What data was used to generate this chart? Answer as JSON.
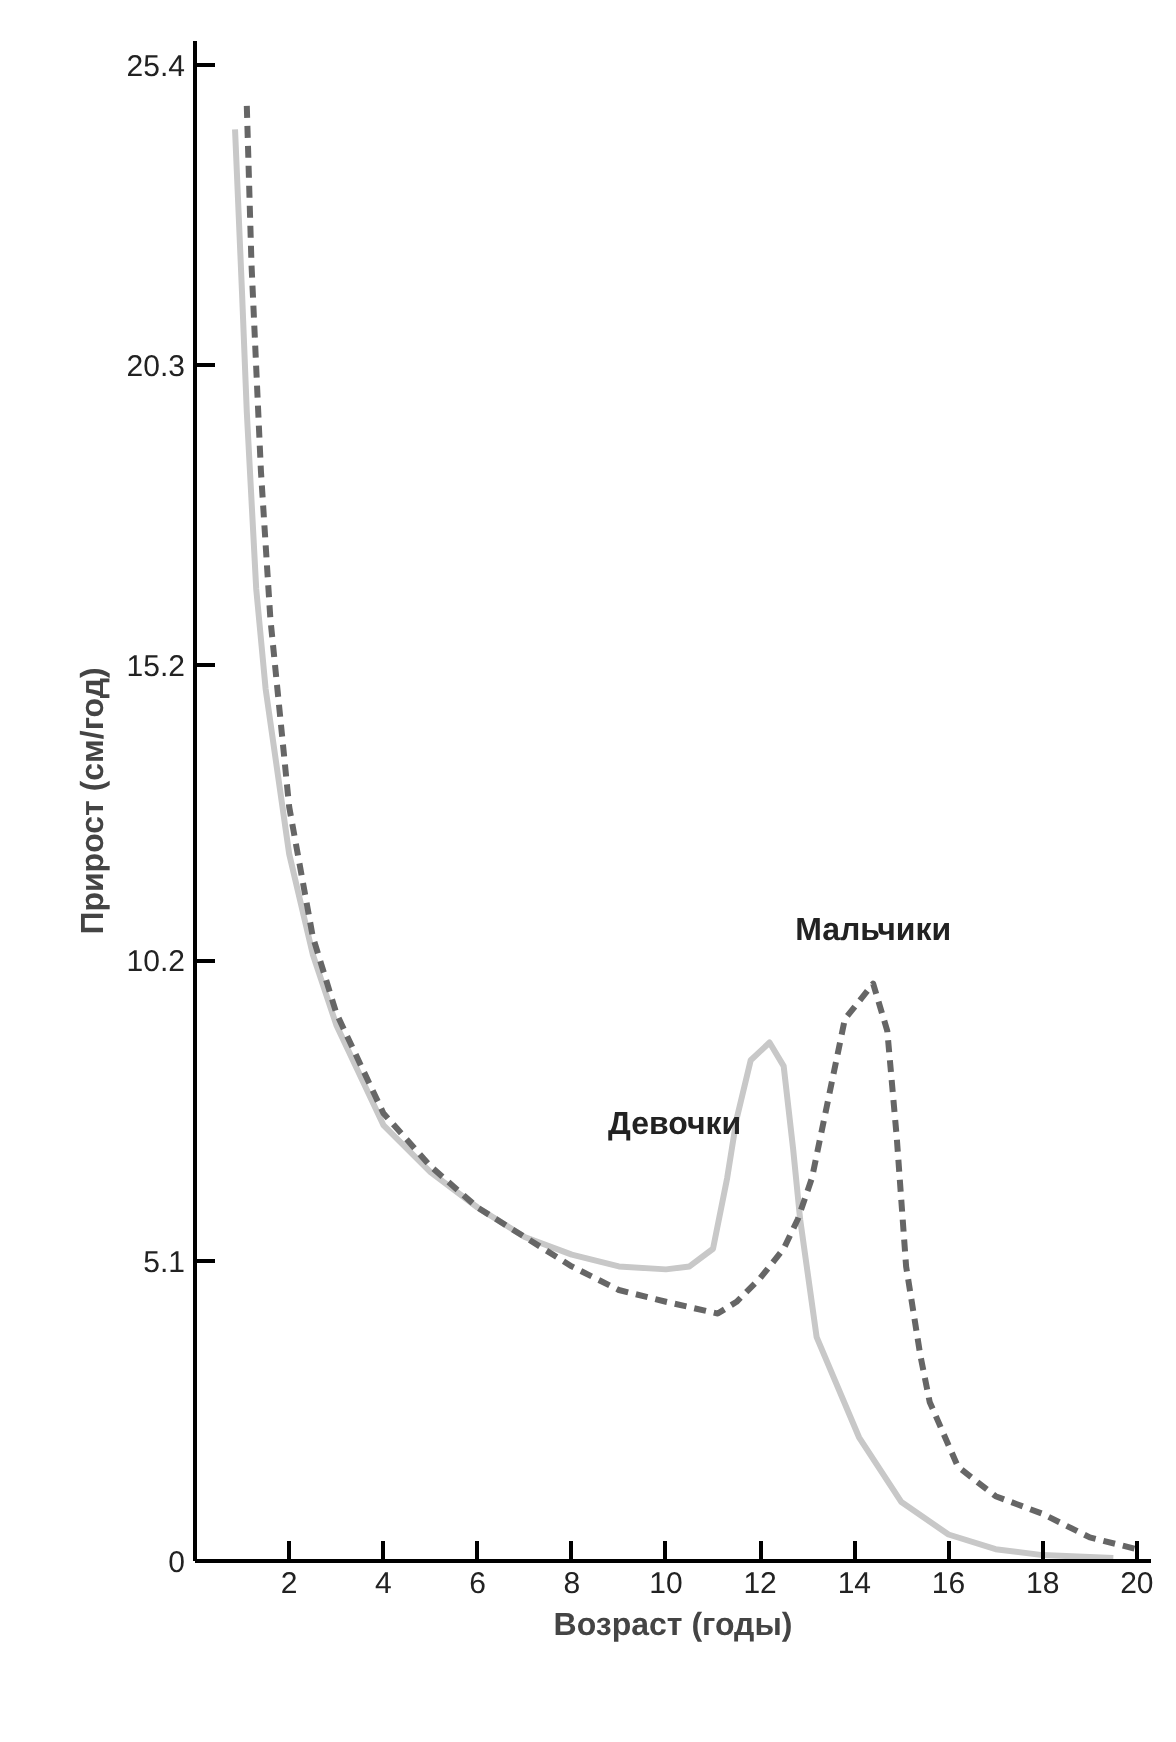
{
  "chart_data": {
    "type": "line",
    "xlabel": "Возраст (годы)",
    "ylabel": "Прирост (см/год)",
    "xlim": [
      0,
      20.3
    ],
    "ylim": [
      0,
      25.8
    ],
    "xticks": [
      2,
      4,
      6,
      8,
      10,
      12,
      14,
      16,
      18,
      20
    ],
    "yticks": [
      0,
      5.1,
      10.2,
      15.2,
      20.3,
      25.4
    ],
    "grid": false,
    "legend": false,
    "series": [
      {
        "name": "Девочки",
        "color": "#c8c8c8",
        "line_style": "solid",
        "x": [
          0.85,
          1.0,
          1.1,
          1.3,
          1.5,
          2,
          2.5,
          3,
          4,
          5,
          6,
          7,
          8,
          9,
          10,
          10.5,
          11.0,
          11.3,
          11.5,
          11.8,
          12.2,
          12.5,
          12.7,
          12.85,
          13.2,
          14.1,
          15,
          16,
          17,
          18,
          19.5
        ],
        "values": [
          24.3,
          21.5,
          19.5,
          16.5,
          14.8,
          12.0,
          10.3,
          9.1,
          7.4,
          6.6,
          6.0,
          5.5,
          5.2,
          5.0,
          4.95,
          5.0,
          5.3,
          6.5,
          7.5,
          8.5,
          8.8,
          8.4,
          7.0,
          5.8,
          3.8,
          2.1,
          1.0,
          0.45,
          0.2,
          0.1,
          0.05
        ]
      },
      {
        "name": "Мальчики",
        "color": "#666666",
        "line_style": "dashed",
        "x": [
          1.1,
          1.2,
          1.4,
          1.6,
          2,
          2.5,
          3,
          4,
          5,
          6,
          7,
          8,
          9,
          10,
          11.1,
          11.5,
          12,
          12.5,
          12.8,
          13.1,
          13.8,
          14.4,
          14.7,
          14.9,
          15.1,
          15.4,
          15.6,
          16.2,
          17,
          18,
          19,
          20
        ],
        "values": [
          24.7,
          22,
          18.5,
          16,
          12.8,
          10.6,
          9.3,
          7.6,
          6.7,
          6.0,
          5.5,
          5.0,
          4.6,
          4.4,
          4.2,
          4.4,
          4.8,
          5.3,
          5.8,
          6.5,
          9.2,
          9.8,
          9.0,
          7.2,
          5.0,
          3.5,
          2.7,
          1.6,
          1.1,
          0.8,
          0.4,
          0.2
        ]
      }
    ]
  }
}
